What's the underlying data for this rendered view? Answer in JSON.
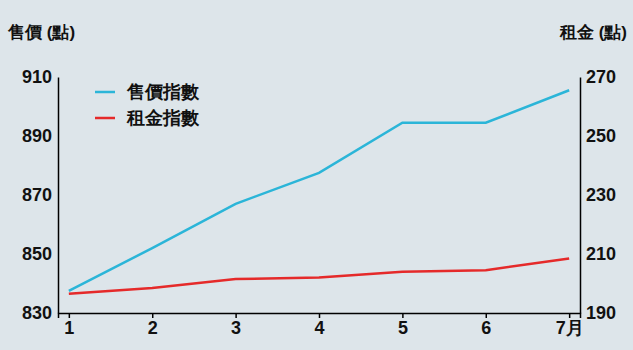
{
  "chart_data": {
    "type": "line",
    "y_label": "售價 (點)",
    "y2_label": "租金 (點)",
    "categories": [
      "1",
      "2",
      "3",
      "4",
      "5",
      "6",
      "7月"
    ],
    "series": [
      {
        "name": "售價指數",
        "color": "#2bb5d8",
        "values": [
          837.5,
          852,
          867,
          877.5,
          894.5,
          894.5,
          905.5
        ]
      },
      {
        "name": "租金指數",
        "color": "#e52a2a",
        "values": [
          196.5,
          198.5,
          201.5,
          202,
          204,
          204.5,
          208.5
        ],
        "axis": "y2"
      }
    ],
    "ylim": [
      830,
      910
    ],
    "yticks": [
      830,
      850,
      870,
      890,
      910
    ],
    "y2lim": [
      190,
      270
    ],
    "y2ticks": [
      190,
      210,
      230,
      250,
      270
    ],
    "legend": "upper left",
    "grid": false
  }
}
